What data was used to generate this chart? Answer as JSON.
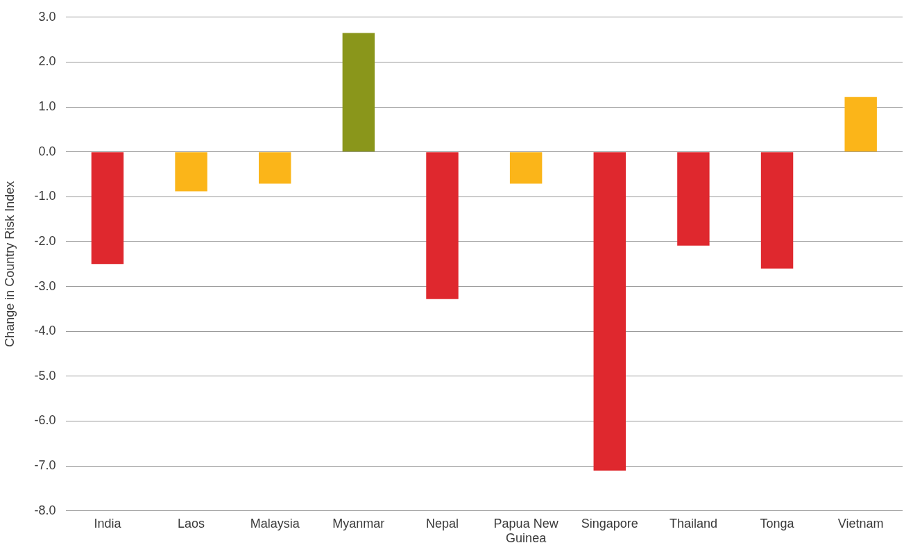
{
  "chart_data": {
    "type": "bar",
    "ylabel": "Change in Country Risk Index",
    "categories": [
      "India",
      "Laos",
      "Malaysia",
      "Myanmar",
      "Nepal",
      "Papua New Guinea",
      "Singapore",
      "Thailand",
      "Tonga",
      "Vietnam"
    ],
    "values": [
      -2.5,
      -0.88,
      -0.71,
      2.65,
      -3.28,
      -0.71,
      -7.1,
      -2.09,
      -2.6,
      1.22
    ],
    "colors": [
      "#df282e",
      "#fbb519",
      "#fbb519",
      "#8a961b",
      "#df282e",
      "#fbb519",
      "#df282e",
      "#df282e",
      "#df282e",
      "#fbb519"
    ],
    "ylim": [
      -8,
      3
    ],
    "yticks": [
      {
        "value": 3,
        "label": "3.0"
      },
      {
        "value": 2,
        "label": "2.0"
      },
      {
        "value": 1,
        "label": "1.0"
      },
      {
        "value": 0,
        "label": "0.0"
      },
      {
        "value": -1,
        "label": "-1.0"
      },
      {
        "value": -2,
        "label": "-2.0"
      },
      {
        "value": -3,
        "label": "-3.0"
      },
      {
        "value": -4,
        "label": "-4.0"
      },
      {
        "value": -5,
        "label": "-5.0"
      },
      {
        "value": -6,
        "label": "-6.0"
      },
      {
        "value": -7,
        "label": "-7.0"
      },
      {
        "value": -8,
        "label": "-8.0"
      }
    ],
    "grid": "y"
  }
}
